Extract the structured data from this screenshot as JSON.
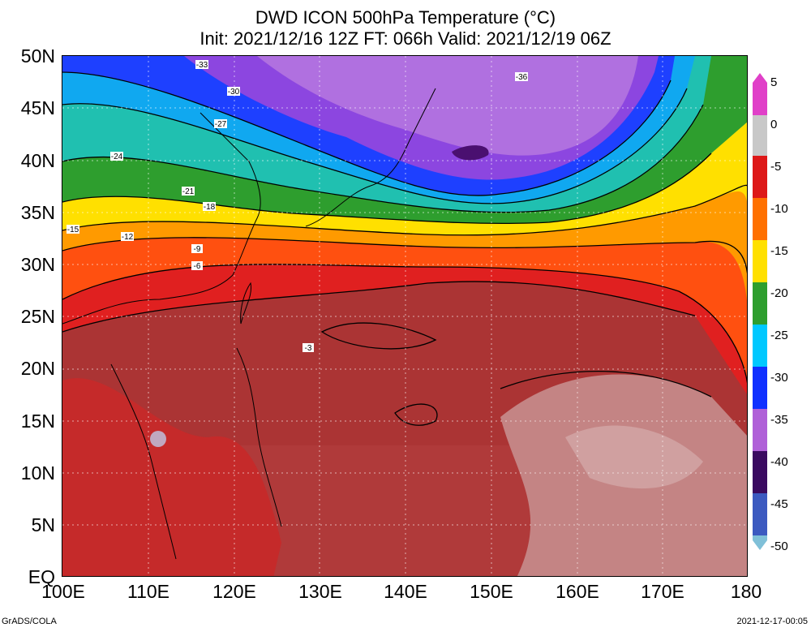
{
  "title": {
    "line1": "DWD ICON 500hPa Temperature (°C)",
    "line2": "Init: 2021/12/16 12Z  FT: 066h  Valid: 2021/12/19 06Z"
  },
  "axes": {
    "lat_labels": [
      "50N",
      "45N",
      "40N",
      "35N",
      "30N",
      "25N",
      "20N",
      "15N",
      "10N",
      "5N",
      "EQ"
    ],
    "lon_labels": [
      "100E",
      "110E",
      "120E",
      "130E",
      "140E",
      "150E",
      "160E",
      "170E",
      "180"
    ]
  },
  "colorbar": {
    "labels": [
      "5",
      "0",
      "-5",
      "-10",
      "-15",
      "-20",
      "-25",
      "-30",
      "-35",
      "-40",
      "-45",
      "-50"
    ],
    "colors": [
      "#e040c8",
      "#c8c8c8",
      "#dd1818",
      "#ff7000",
      "#ffe000",
      "#2e9e2e",
      "#00c8ff",
      "#1030ff",
      "#b060d8",
      "#3a0a60",
      "#3c5ac0",
      "#80c0d8"
    ]
  },
  "contour_labels": [
    "-36",
    "-33",
    "-30",
    "-27",
    "-24",
    "-21",
    "-18",
    "-15",
    "-12",
    "-9",
    "-6",
    "-3"
  ],
  "footer": {
    "left": "GrADS/COLA",
    "right": "2021-12-17-00:05"
  },
  "map": {
    "lon_min": 100,
    "lon_max": 180,
    "lat_min": 0,
    "lat_max": 50
  }
}
